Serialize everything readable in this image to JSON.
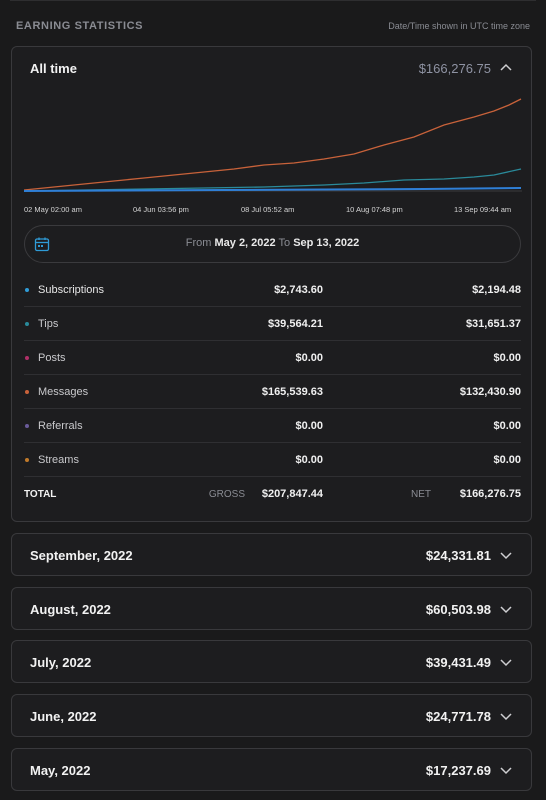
{
  "header": {
    "title": "EARNING STATISTICS",
    "timezone_note": "Date/Time shown in UTC time zone"
  },
  "summary": {
    "period_label": "All time",
    "total": "$166,276.75"
  },
  "chart": {
    "x_ticks": [
      "02 May 02:00 am",
      "04 Jun 03:56 pm",
      "08 Jul 05:52 am",
      "10 Aug 07:48 pm",
      "13 Sep 09:44 am"
    ],
    "colors": {
      "messages": "#c8623a",
      "tips": "#2a8a9a",
      "subscriptions": "#2f7fd6"
    }
  },
  "date_range": {
    "from_label": "From",
    "from_date": "May 2, 2022",
    "to_label": "To",
    "to_date": "Sep 13, 2022"
  },
  "categories": [
    {
      "name": "Subscriptions",
      "gross": "$2,743.60",
      "net": "$2,194.48",
      "color": "#2f9bd6"
    },
    {
      "name": "Tips",
      "gross": "$39,564.21",
      "net": "$31,651.37",
      "color": "#2a8a9a"
    },
    {
      "name": "Posts",
      "gross": "$0.00",
      "net": "$0.00",
      "color": "#b03068"
    },
    {
      "name": "Messages",
      "gross": "$165,539.63",
      "net": "$132,430.90",
      "color": "#c8623a"
    },
    {
      "name": "Referrals",
      "gross": "$0.00",
      "net": "$0.00",
      "color": "#6a5b9a"
    },
    {
      "name": "Streams",
      "gross": "$0.00",
      "net": "$0.00",
      "color": "#c07a2a"
    }
  ],
  "totals": {
    "label": "TOTAL",
    "gross_label": "GROSS",
    "gross": "$207,847.44",
    "net_label": "NET",
    "net": "$166,276.75"
  },
  "months": [
    {
      "name": "September, 2022",
      "amount": "$24,331.81"
    },
    {
      "name": "August, 2022",
      "amount": "$60,503.98"
    },
    {
      "name": "July, 2022",
      "amount": "$39,431.49"
    },
    {
      "name": "June, 2022",
      "amount": "$24,771.78"
    },
    {
      "name": "May, 2022",
      "amount": "$17,237.69"
    }
  ]
}
